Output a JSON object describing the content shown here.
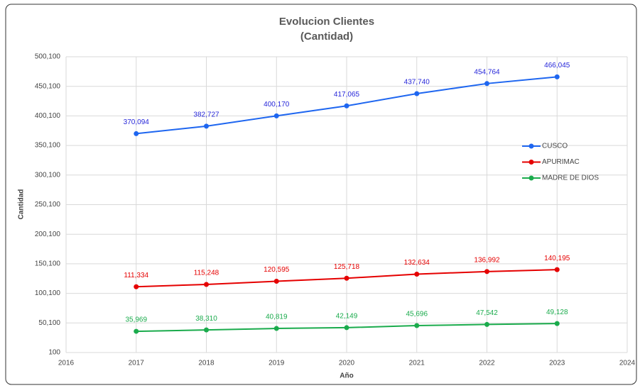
{
  "chart_data": {
    "type": "line",
    "title": "Evolucion Clientes",
    "subtitle": "(Cantidad)",
    "x_label": "Año",
    "y_label": "Cantidad",
    "x": [
      2017,
      2018,
      2019,
      2020,
      2021,
      2022,
      2023
    ],
    "series": [
      {
        "name": "CUSCO",
        "color": "#1e66f0",
        "label_color": "#2626d9",
        "values": [
          370094,
          382727,
          400170,
          417065,
          437740,
          454764,
          466045
        ],
        "value_labels": [
          "370,094",
          "382,727",
          "400,170",
          "417,065",
          "437,740",
          "454,764",
          "466,045"
        ]
      },
      {
        "name": "APURIMAC",
        "color": "#e50000",
        "label_color": "#e50000",
        "values": [
          111334,
          115248,
          120595,
          125718,
          132634,
          136992,
          140195
        ],
        "value_labels": [
          "111,334",
          "115,248",
          "120,595",
          "125,718",
          "132,634",
          "136,992",
          "140,195"
        ]
      },
      {
        "name": "MADRE DE DIOS",
        "color": "#1aab4c",
        "label_color": "#1aab4c",
        "values": [
          35969,
          38310,
          40819,
          42149,
          45696,
          47542,
          49128
        ],
        "value_labels": [
          "35,969",
          "38,310",
          "40,819",
          "42,149",
          "45,696",
          "47,542",
          "49,128"
        ]
      }
    ],
    "xlim": [
      2016,
      2024
    ],
    "xticks": [
      2016,
      2017,
      2018,
      2019,
      2020,
      2021,
      2022,
      2023,
      2024
    ],
    "ylim": [
      100,
      500100
    ],
    "yticks": [
      {
        "value": 100,
        "label": "100"
      },
      {
        "value": 50100,
        "label": "50,100"
      },
      {
        "value": 100100,
        "label": "100,100"
      },
      {
        "value": 150100,
        "label": "150,100"
      },
      {
        "value": 200100,
        "label": "200,100"
      },
      {
        "value": 250100,
        "label": "250,100"
      },
      {
        "value": 300100,
        "label": "300,100"
      },
      {
        "value": 350100,
        "label": "350,100"
      },
      {
        "value": 400100,
        "label": "400,100"
      },
      {
        "value": 450100,
        "label": "450,100"
      },
      {
        "value": 500100,
        "label": "500,100"
      }
    ],
    "grid": true,
    "legend": "right"
  }
}
